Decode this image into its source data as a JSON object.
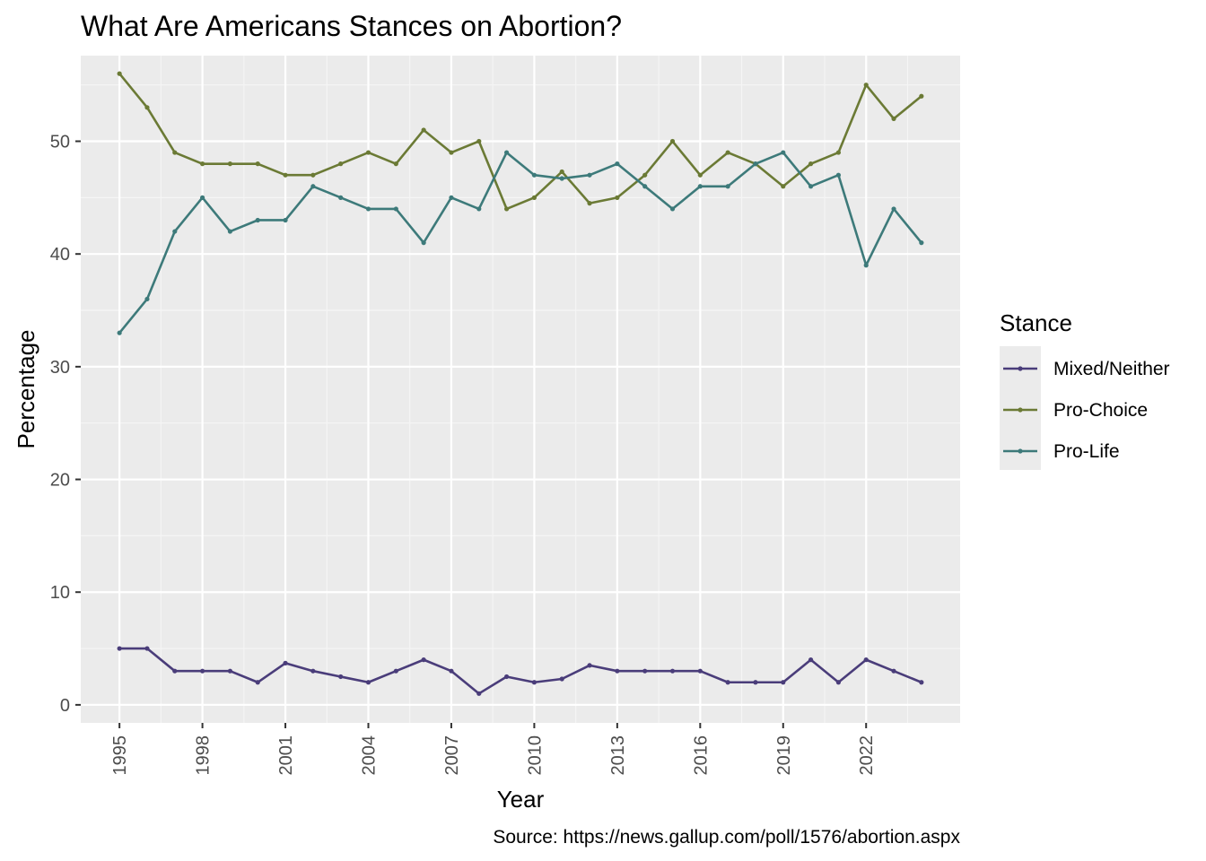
{
  "chart_data": {
    "type": "line",
    "title": "What Are Americans Stances on Abortion?",
    "xlabel": "Year",
    "ylabel": "Percentage",
    "caption": "Source: https://news.gallup.com/poll/1576/abortion.aspx",
    "legend_title": "Stance",
    "legend_position": "right",
    "xlim": [
      1993.6,
      2025.4
    ],
    "ylim": [
      -1.6,
      57.6
    ],
    "x_ticks": [
      1995,
      1998,
      2001,
      2004,
      2007,
      2010,
      2013,
      2016,
      2019,
      2022
    ],
    "y_ticks": [
      0,
      10,
      20,
      30,
      40,
      50
    ],
    "grid": true,
    "background_color": "#ebebeb",
    "x": [
      1995,
      1996,
      1997,
      1998,
      1999,
      2000,
      2001,
      2002,
      2003,
      2004,
      2005,
      2006,
      2007,
      2008,
      2009,
      2010,
      2011,
      2012,
      2013,
      2014,
      2015,
      2016,
      2017,
      2018,
      2019,
      2020,
      2021,
      2022,
      2023,
      2024
    ],
    "series": [
      {
        "name": "Mixed/Neither",
        "color": "#4a3d7a",
        "values": [
          5,
          5,
          3,
          3,
          3,
          2,
          3.7,
          3,
          2.5,
          2,
          3,
          4,
          3,
          1,
          2.5,
          2,
          2.3,
          3.5,
          3,
          3,
          3,
          3,
          2,
          2,
          2,
          4,
          2,
          4,
          3,
          2
        ]
      },
      {
        "name": "Pro-Choice",
        "color": "#6b7a35",
        "values": [
          56,
          53,
          49,
          48,
          48,
          48,
          47,
          47,
          48,
          49,
          48,
          51,
          49,
          50,
          44,
          45,
          47.3,
          44.5,
          45,
          47,
          50,
          47,
          49,
          48,
          46,
          48,
          49,
          55,
          52,
          54
        ]
      },
      {
        "name": "Pro-Life",
        "color": "#3d7a7a",
        "values": [
          33,
          36,
          42,
          45,
          42,
          43,
          43,
          46,
          45,
          44,
          44,
          41,
          45,
          44,
          49,
          47,
          46.7,
          47,
          48,
          46,
          44,
          46,
          46,
          48,
          49,
          46,
          47,
          39,
          44,
          41
        ]
      }
    ]
  }
}
